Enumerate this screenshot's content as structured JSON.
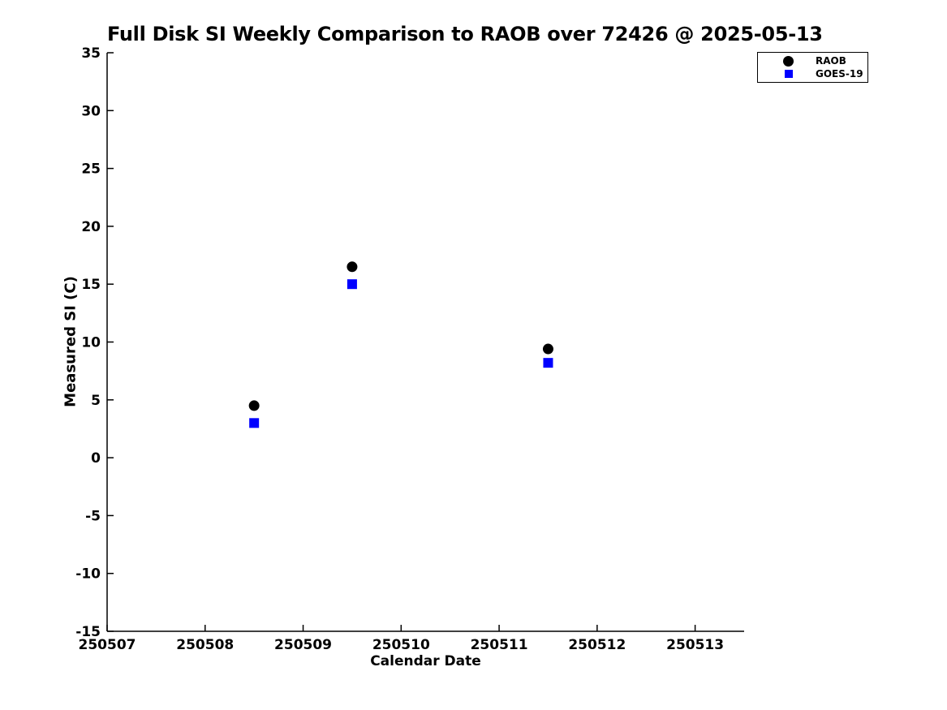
{
  "chart_data": {
    "type": "scatter",
    "title": "Full Disk SI Weekly Comparison to RAOB over 72426 @ 2025-05-13",
    "xlabel": "Calendar Date",
    "ylabel": "Measured SI (C)",
    "xlim": [
      250507,
      250513.5
    ],
    "ylim": [
      -15,
      35
    ],
    "xticks": [
      250507,
      250508,
      250509,
      250510,
      250511,
      250512,
      250513
    ],
    "yticks": [
      -15,
      -10,
      -5,
      0,
      5,
      10,
      15,
      20,
      25,
      30,
      35
    ],
    "grid": false,
    "legend_position": "top-right",
    "axis_color": "#000000",
    "background_color": "#ffffff",
    "series": [
      {
        "name": "RAOB",
        "marker": "circle",
        "color": "#000000",
        "x": [
          250508.5,
          250509.5,
          250511.5
        ],
        "y": [
          4.5,
          16.5,
          9.4
        ]
      },
      {
        "name": "GOES-19",
        "marker": "square",
        "color": "#0000ff",
        "x": [
          250508.5,
          250509.5,
          250511.5
        ],
        "y": [
          3.0,
          15.0,
          8.2
        ]
      }
    ]
  }
}
